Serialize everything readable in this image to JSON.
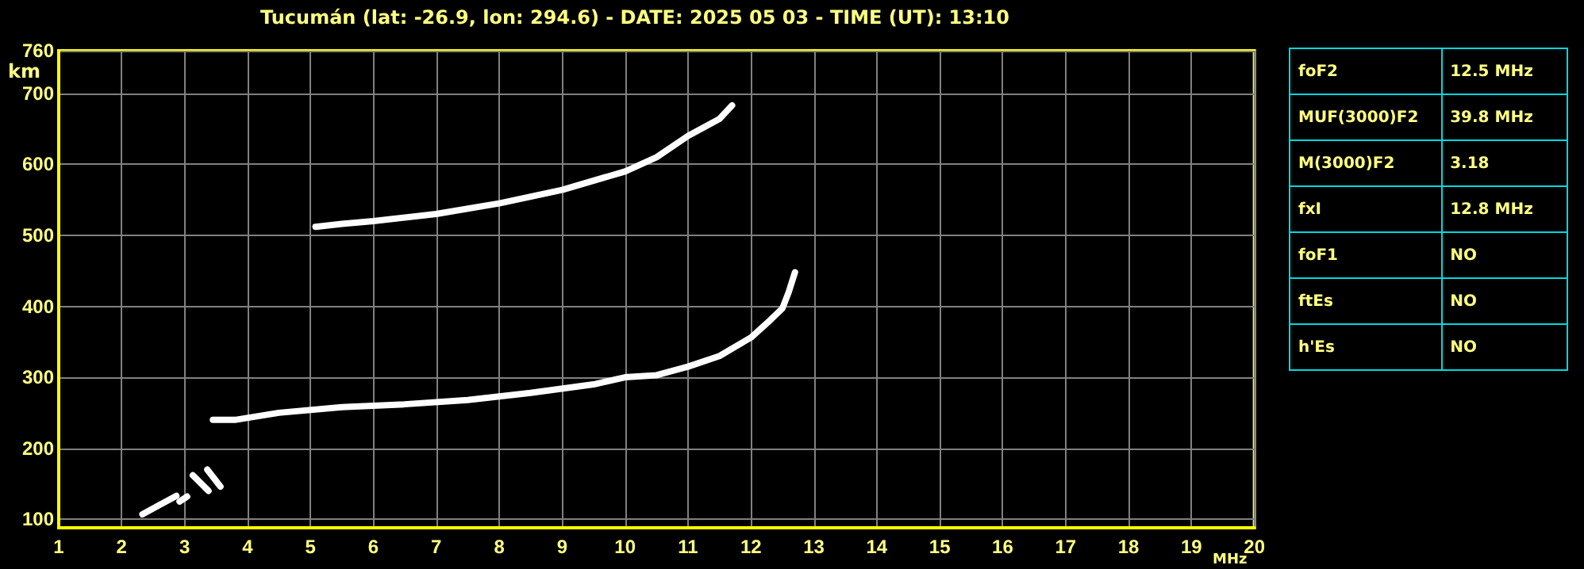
{
  "chart_data": [
    {
      "type": "line",
      "title": "Tucumán (lat: -26.9, lon: 294.6) - DATE: 2025 05 03 - TIME (UT): 13:10",
      "xlabel": "MHz",
      "ylabel": "km",
      "xlim": [
        1,
        20
      ],
      "ylim": [
        88,
        760
      ],
      "xticks": [
        1,
        2,
        3,
        4,
        5,
        6,
        7,
        8,
        9,
        10,
        11,
        12,
        13,
        14,
        15,
        16,
        17,
        18,
        19,
        20
      ],
      "yticks": [
        100,
        200,
        300,
        400,
        500,
        600,
        700,
        760
      ],
      "grid": true,
      "marker": "none",
      "line_style": "solid",
      "series": [
        {
          "color": "#ffffff",
          "x": [
            3.45,
            3.8,
            4.5,
            5.5,
            6.5,
            7.5,
            8.5,
            9.5,
            10,
            10.5,
            11,
            11.5,
            12,
            12.3,
            12.5,
            12.6,
            12.7
          ],
          "values": [
            240,
            240,
            250,
            258,
            262,
            268,
            278,
            290,
            300,
            303,
            315,
            330,
            356,
            380,
            397,
            420,
            448
          ]
        },
        {
          "color": "#ffffff",
          "x": [
            5.08,
            5.5,
            6,
            7,
            8,
            9,
            10,
            10.5,
            11,
            11.5,
            11.7
          ],
          "values": [
            512,
            516,
            520,
            530,
            545,
            564,
            590,
            610,
            640,
            664,
            683
          ]
        },
        {
          "color": "#ffffff",
          "x": [
            2.33,
            2.6,
            2.87
          ],
          "values": [
            107,
            120,
            133
          ]
        },
        {
          "color": "#ffffff",
          "x": [
            2.92,
            3.04
          ],
          "values": [
            125,
            132
          ]
        },
        {
          "color": "#ffffff",
          "x": [
            3.13,
            3.38
          ],
          "values": [
            162,
            140
          ]
        },
        {
          "color": "#ffffff",
          "x": [
            3.36,
            3.57
          ],
          "values": [
            170,
            146
          ]
        }
      ]
    },
    {
      "type": "other",
      "annotations": [
        "foF2",
        "12.5 MHz",
        "MUF(3000)F2",
        "39.8 MHz",
        "M(3000)F2",
        "3.18",
        "fxI",
        "12.8 MHz",
        "foF1",
        "NO",
        "ftEs",
        "NO",
        "h'Es",
        "NO"
      ]
    }
  ]
}
